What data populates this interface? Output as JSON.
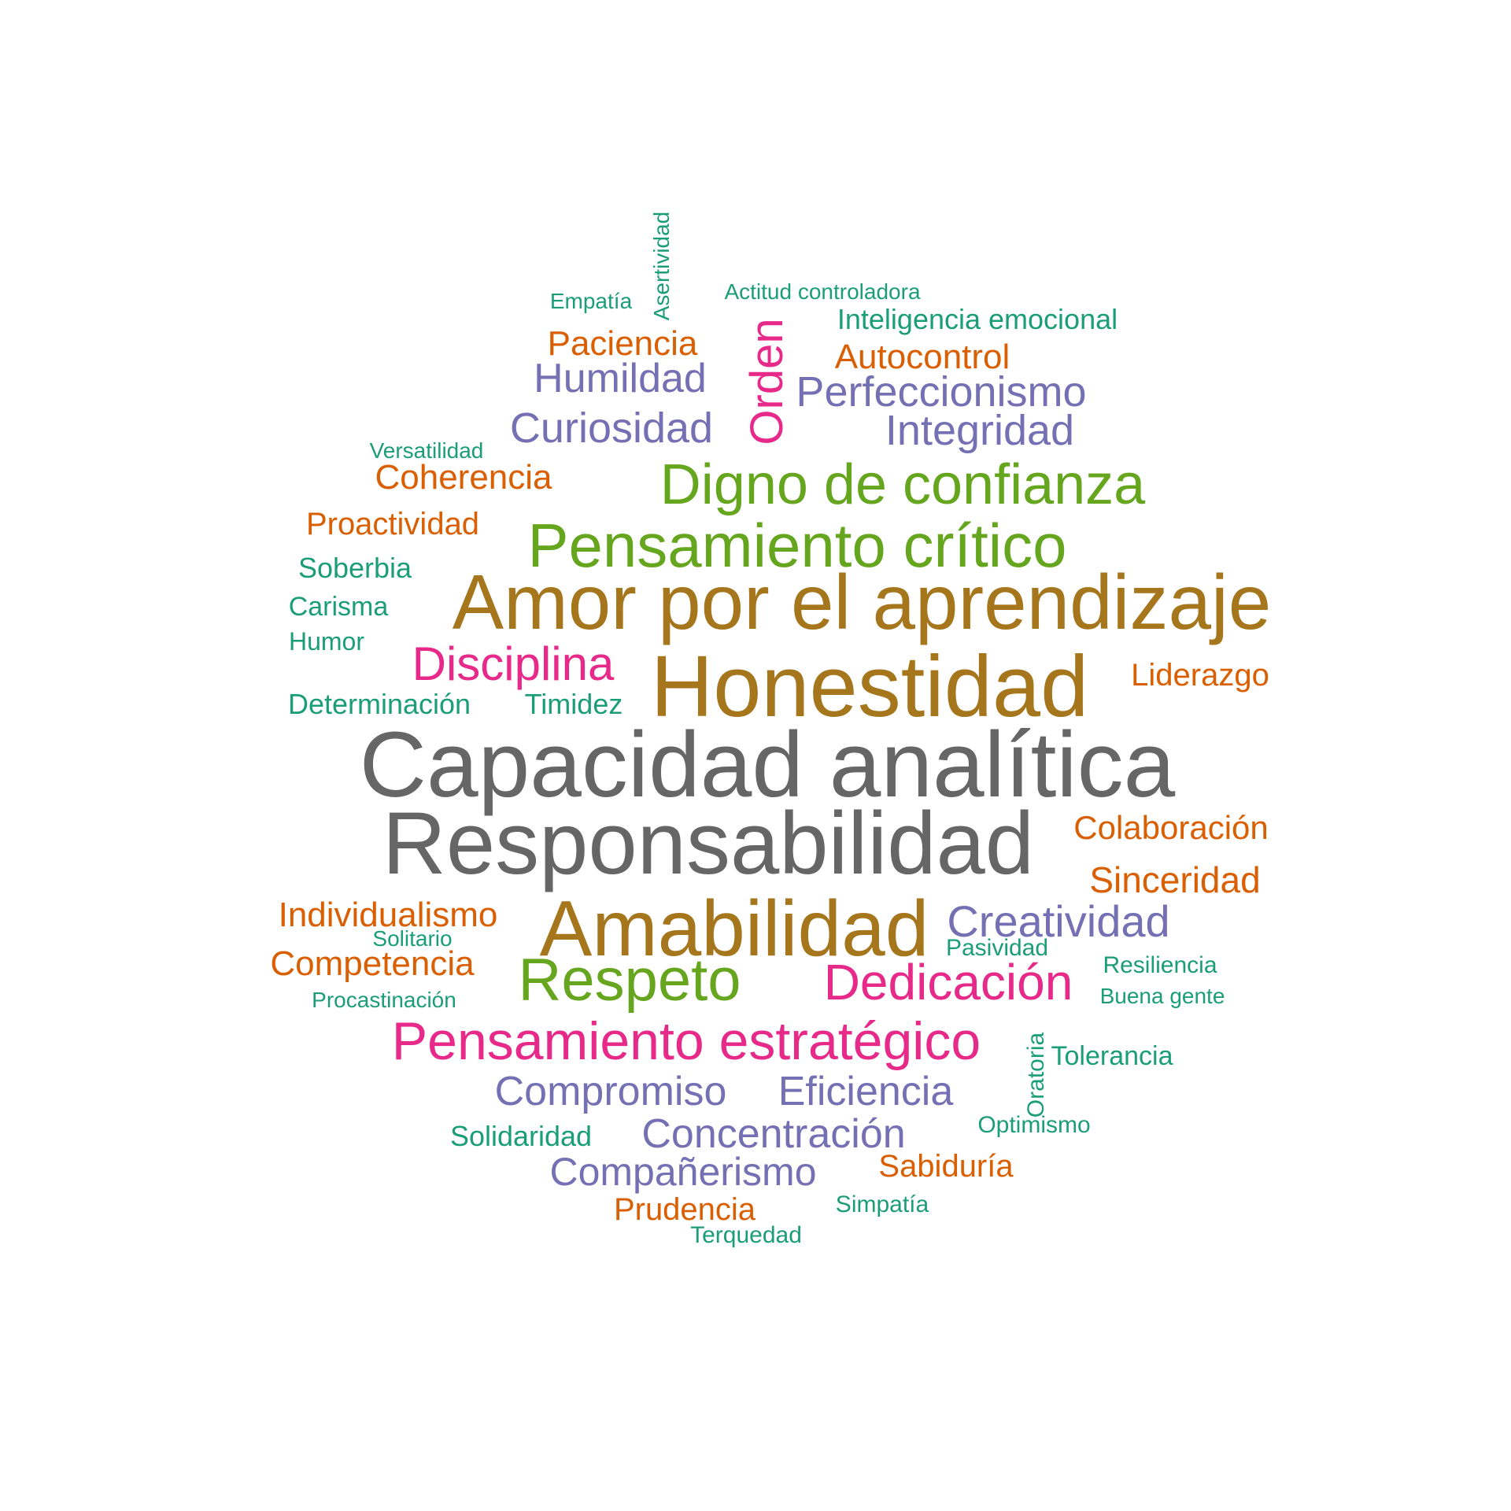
{
  "palette": {
    "teal": "#1b9e77",
    "orange": "#d95f02",
    "purple": "#7570b3",
    "pink": "#e7298a",
    "green": "#66a61e",
    "gold": "#a6761d",
    "gray": "#666666"
  },
  "words": [
    {
      "text": "Capacidad analítica",
      "weight": 14,
      "color": "gray"
    },
    {
      "text": "Responsabilidad",
      "weight": 13,
      "color": "gray"
    },
    {
      "text": "Honestidad",
      "weight": 12,
      "color": "gold"
    },
    {
      "text": "Amor por el aprendizaje",
      "weight": 12,
      "color": "gold"
    },
    {
      "text": "Amabilidad",
      "weight": 12,
      "color": "gold"
    },
    {
      "text": "Pensamiento crítico",
      "weight": 9,
      "color": "green"
    },
    {
      "text": "Digno de confianza",
      "weight": 9,
      "color": "green"
    },
    {
      "text": "Respeto",
      "weight": 9,
      "color": "green"
    },
    {
      "text": "Pensamiento estratégico",
      "weight": 8,
      "color": "pink"
    },
    {
      "text": "Dedicación",
      "weight": 8,
      "color": "pink"
    },
    {
      "text": "Disciplina",
      "weight": 7,
      "color": "pink"
    },
    {
      "text": "Orden",
      "weight": 6,
      "color": "pink"
    },
    {
      "text": "Creatividad",
      "weight": 6,
      "color": "purple"
    },
    {
      "text": "Perfeccionismo",
      "weight": 6,
      "color": "purple"
    },
    {
      "text": "Integridad",
      "weight": 6,
      "color": "purple"
    },
    {
      "text": "Curiosidad",
      "weight": 6,
      "color": "purple"
    },
    {
      "text": "Humildad",
      "weight": 6,
      "color": "purple"
    },
    {
      "text": "Compromiso",
      "weight": 6,
      "color": "purple"
    },
    {
      "text": "Eficiencia",
      "weight": 6,
      "color": "purple"
    },
    {
      "text": "Concentración",
      "weight": 6,
      "color": "purple"
    },
    {
      "text": "Compañerismo",
      "weight": 6,
      "color": "purple"
    },
    {
      "text": "Paciencia",
      "weight": 5,
      "color": "orange"
    },
    {
      "text": "Autocontrol",
      "weight": 5,
      "color": "orange"
    },
    {
      "text": "Coherencia",
      "weight": 5,
      "color": "orange"
    },
    {
      "text": "Proactividad",
      "weight": 5,
      "color": "orange"
    },
    {
      "text": "Liderazgo",
      "weight": 5,
      "color": "orange"
    },
    {
      "text": "Colaboración",
      "weight": 5,
      "color": "orange"
    },
    {
      "text": "Sinceridad",
      "weight": 5,
      "color": "orange"
    },
    {
      "text": "Individualismo",
      "weight": 5,
      "color": "orange"
    },
    {
      "text": "Competencia",
      "weight": 5,
      "color": "orange"
    },
    {
      "text": "Sabiduría",
      "weight": 5,
      "color": "orange"
    },
    {
      "text": "Prudencia",
      "weight": 5,
      "color": "orange"
    },
    {
      "text": "Inteligencia emocional",
      "weight": 4,
      "color": "teal"
    },
    {
      "text": "Soberbia",
      "weight": 4,
      "color": "teal"
    },
    {
      "text": "Carisma",
      "weight": 4,
      "color": "teal"
    },
    {
      "text": "Humor",
      "weight": 4,
      "color": "teal"
    },
    {
      "text": "Determinación",
      "weight": 4,
      "color": "teal"
    },
    {
      "text": "Timidez",
      "weight": 4,
      "color": "teal"
    },
    {
      "text": "Solidaridad",
      "weight": 4,
      "color": "teal"
    },
    {
      "text": "Tolerancia",
      "weight": 4,
      "color": "teal"
    },
    {
      "text": "Oratoria",
      "weight": 3,
      "color": "teal"
    },
    {
      "text": "Resiliencia",
      "weight": 3,
      "color": "teal"
    },
    {
      "text": "Pasividad",
      "weight": 3,
      "color": "teal"
    },
    {
      "text": "Optimismo",
      "weight": 3,
      "color": "teal"
    },
    {
      "text": "Simpatía",
      "weight": 3,
      "color": "teal"
    },
    {
      "text": "Terquedad",
      "weight": 3,
      "color": "teal"
    },
    {
      "text": "Buena gente",
      "weight": 3,
      "color": "teal"
    },
    {
      "text": "Procastinación",
      "weight": 3,
      "color": "teal"
    },
    {
      "text": "Empatía",
      "weight": 3,
      "color": "teal"
    },
    {
      "text": "Asertividad",
      "weight": 3,
      "color": "teal"
    },
    {
      "text": "Actitud controladora",
      "weight": 3,
      "color": "teal"
    },
    {
      "text": "Versatilidad",
      "weight": 3,
      "color": "teal"
    },
    {
      "text": "Solitario",
      "weight": 3,
      "color": "teal"
    }
  ]
}
